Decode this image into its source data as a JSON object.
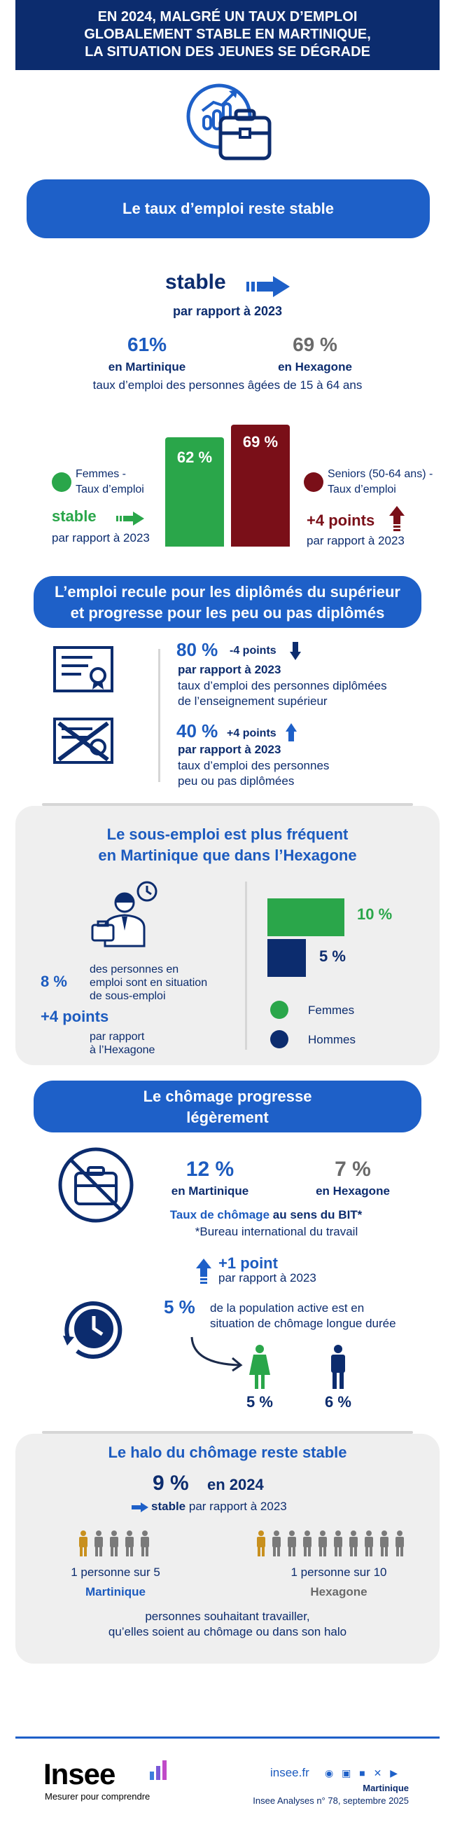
{
  "header": {
    "title_line1": "EN 2024, MALGRÉ UN TAUX D’EMPLOI",
    "title_line2": "GLOBALEMENT STABLE EN MARTINIQUE,",
    "title_line3": "LA SITUATION DES JEUNES SE DÉGRADE"
  },
  "section1": {
    "banner": "Le taux d’emploi reste stable",
    "stable_label": "stable",
    "stable_sub": "par rapport à 2023",
    "martinique_value": "61%",
    "martinique_label": "en Martinique",
    "hexagone_value": "69 %",
    "hexagone_label": "en Hexagone",
    "caption": "taux d’emploi des personnes âgées de 15 à 64 ans",
    "women_label_1": "Femmes -",
    "women_label_2": "Taux d’emploi",
    "women_value": "62 %",
    "women_trend": "stable",
    "women_trend_sub": "par rapport à 2023",
    "seniors_label_1": "Seniors (50-64 ans) -",
    "seniors_label_2": "Taux d’emploi",
    "seniors_value": "69 %",
    "seniors_trend": "+4 points",
    "seniors_trend_sub": "par rapport à 2023"
  },
  "section2": {
    "banner_line1": "L’emploi recule pour les diplômés du supérieur",
    "banner_line2": "et progresse pour les peu ou pas diplômés",
    "item1_value": "80 %",
    "item1_change": "-4 points",
    "item1_sub": "par rapport à 2023",
    "item1_desc_1": "taux d’emploi des personnes diplômées",
    "item1_desc_2": "de l’enseignement supérieur",
    "item2_value": "40 %",
    "item2_change": "+4 points",
    "item2_sub": "par rapport à 2023",
    "item2_desc_1": "taux d’emploi des personnes",
    "item2_desc_2": "peu ou pas diplômées"
  },
  "section3": {
    "title_line1": "Le sous-emploi est plus fréquent",
    "title_line2": "en Martinique que dans l’Hexagone",
    "value": "8 %",
    "desc_1": "des personnes en",
    "desc_2": "emploi sont en situation",
    "desc_3": "de sous-emploi",
    "change": "+4 points",
    "change_sub_1": "par rapport",
    "change_sub_2": "à l’Hexagone",
    "women_value": "10 %",
    "men_value": "5 %",
    "women_value_num": 10,
    "men_value_num": 5,
    "legend_women": "Femmes",
    "legend_men": "Hommes"
  },
  "section4": {
    "banner_line1": "Le chômage progresse",
    "banner_line2": "légèrement",
    "martinique_value": "12 %",
    "martinique_label": "en Martinique",
    "hexagone_value": "7 %",
    "hexagone_label": "en Hexagone",
    "caption_main": "Taux de chômage",
    "caption_bold": "au sens du BIT*",
    "footnote": "*Bureau international du travail",
    "change": "+1 point",
    "change_sub": "par rapport à 2023",
    "long_value": "5 %",
    "long_desc_1": "de la population active est en",
    "long_desc_2": "situation de chômage longue durée",
    "women_value": "5 %",
    "men_value": "6 %"
  },
  "section5": {
    "title": "Le halo du chômage reste stable",
    "value": "9 %",
    "year": "en 2024",
    "stable": "stable",
    "stable_sub": "par rapport à 2023",
    "martinique_ratio": "1 personne sur 5",
    "martinique_label": "Martinique",
    "hexagone_ratio": "1 personne sur 10",
    "hexagone_label": "Hexagone",
    "caption_1": "personnes souhaitant travailler,",
    "caption_2": "qu’elles soient au chômage ou dans son halo"
  },
  "footer": {
    "logo": "Insee",
    "tagline": "Mesurer pour comprendre",
    "site": "insee.fr",
    "region": "Martinique",
    "publication": "Insee Analyses n° 78, septembre 2025"
  },
  "colors": {
    "navy": "#0c2c6e",
    "blue": "#1e60c8",
    "green": "#2aa64a",
    "red": "#7a0f18",
    "gold": "#c8901e",
    "grey": "#7a7a7a"
  }
}
